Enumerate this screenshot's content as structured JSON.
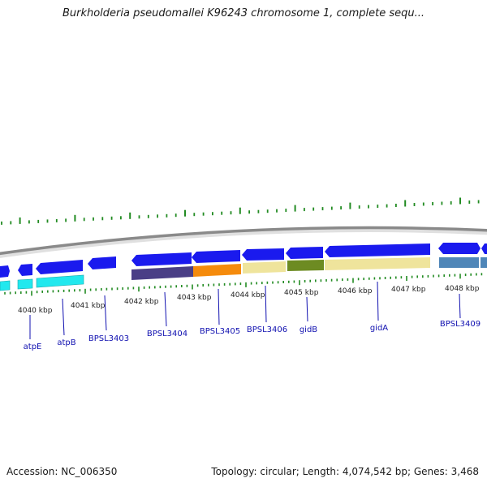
{
  "title": "Burkholderia pseudomallei K96243 chromosome 1, complete sequ...",
  "footer": {
    "accession": "Accession: NC_006350",
    "summary": "Topology: circular; Length: 4,074,542 bp; Genes: 3,468"
  },
  "scale_labels": [
    "4040 kbp",
    "4041 kbp",
    "4042 kbp",
    "4043 kbp",
    "4044 kbp",
    "4045 kbp",
    "4046 kbp",
    "4047 kbp",
    "4048 kbp"
  ],
  "gene_labels": [
    "atpE",
    "atpB",
    "BPSL3403",
    "BPSL3404",
    "BPSL3405",
    "BPSL3406",
    "gidB",
    "gidA",
    "BPSL3409"
  ],
  "colors": {
    "gene_arrow": "#1a1aee",
    "backbone": "#888888",
    "tick": "#228b22",
    "label": "#1010b0",
    "cyan": "#22e8ee",
    "purple": "#4a3f86",
    "orange": "#f58b0c",
    "khaki": "#efe49c",
    "olive": "#6d8b22",
    "steelblue": "#4f86b8"
  }
}
